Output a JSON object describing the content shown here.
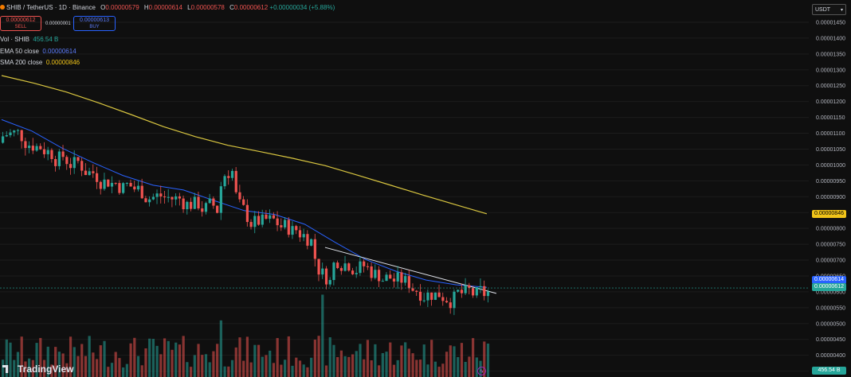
{
  "header": {
    "symbol": "SHIB / TetherUS · 1D · Binance",
    "ohlc": [
      {
        "label": "O",
        "value": "0.00000579"
      },
      {
        "label": "H",
        "value": "0.00000614"
      },
      {
        "label": "L",
        "value": "0.00000578"
      },
      {
        "label": "C",
        "value": "0.00000612"
      }
    ],
    "change": "+0.00000034 (+5.88%)"
  },
  "trade": {
    "sell_price": "0.00000612",
    "sell_label": "SELL",
    "spread": "0.00000001",
    "buy_price": "0.00000613",
    "buy_label": "BUY"
  },
  "indicators": {
    "vol": {
      "label": "Vol · SHIB",
      "value": "456.54 B"
    },
    "ema": {
      "label": "EMA 50 close",
      "value": "0.00000614"
    },
    "sma": {
      "label": "SMA 200 close",
      "value": "0.00000846"
    }
  },
  "currency": "USDT",
  "tags": {
    "sma": "0.00000846",
    "ema": "0.00000614",
    "last": "0.00000612",
    "vol": "456.54 B"
  },
  "brand": "TradingView",
  "colors": {
    "up": "#26a69a",
    "down": "#ef5350",
    "ema": "#2962ff",
    "sma": "#d9c640",
    "trendline": "#e0e3eb"
  },
  "chart_data": {
    "type": "candlestick",
    "y_axis": {
      "ticks": [
        "0.00001450",
        "0.00001400",
        "0.00001350",
        "0.00001300",
        "0.00001250",
        "0.00001200",
        "0.00001150",
        "0.00001100",
        "0.00001050",
        "0.00001000",
        "0.00000950",
        "0.00000900",
        "0.00000850",
        "0.00000800",
        "0.00000750",
        "0.00000700",
        "0.00000650",
        "0.00000600",
        "0.00000550",
        "0.00000500",
        "0.00000450",
        "0.00000400",
        "0.00000350"
      ],
      "range": [
        3.4e-06,
        1.47e-05
      ]
    },
    "sma200": [
      12.82,
      12.58,
      12.3,
      11.96,
      11.59,
      11.21,
      10.89,
      10.62,
      10.42,
      10.21,
      9.98,
      9.68,
      9.37,
      9.06,
      8.76,
      8.46
    ],
    "ema50": [
      11.43,
      11.07,
      10.53,
      10.08,
      9.67,
      9.36,
      9.21,
      8.88,
      8.56,
      8.44,
      8.13,
      7.56,
      7.02,
      6.65,
      6.37,
      6.22,
      6.14
    ],
    "trendline": {
      "from": 7.4,
      "to": 5.95
    },
    "last_close": 6.12
  }
}
